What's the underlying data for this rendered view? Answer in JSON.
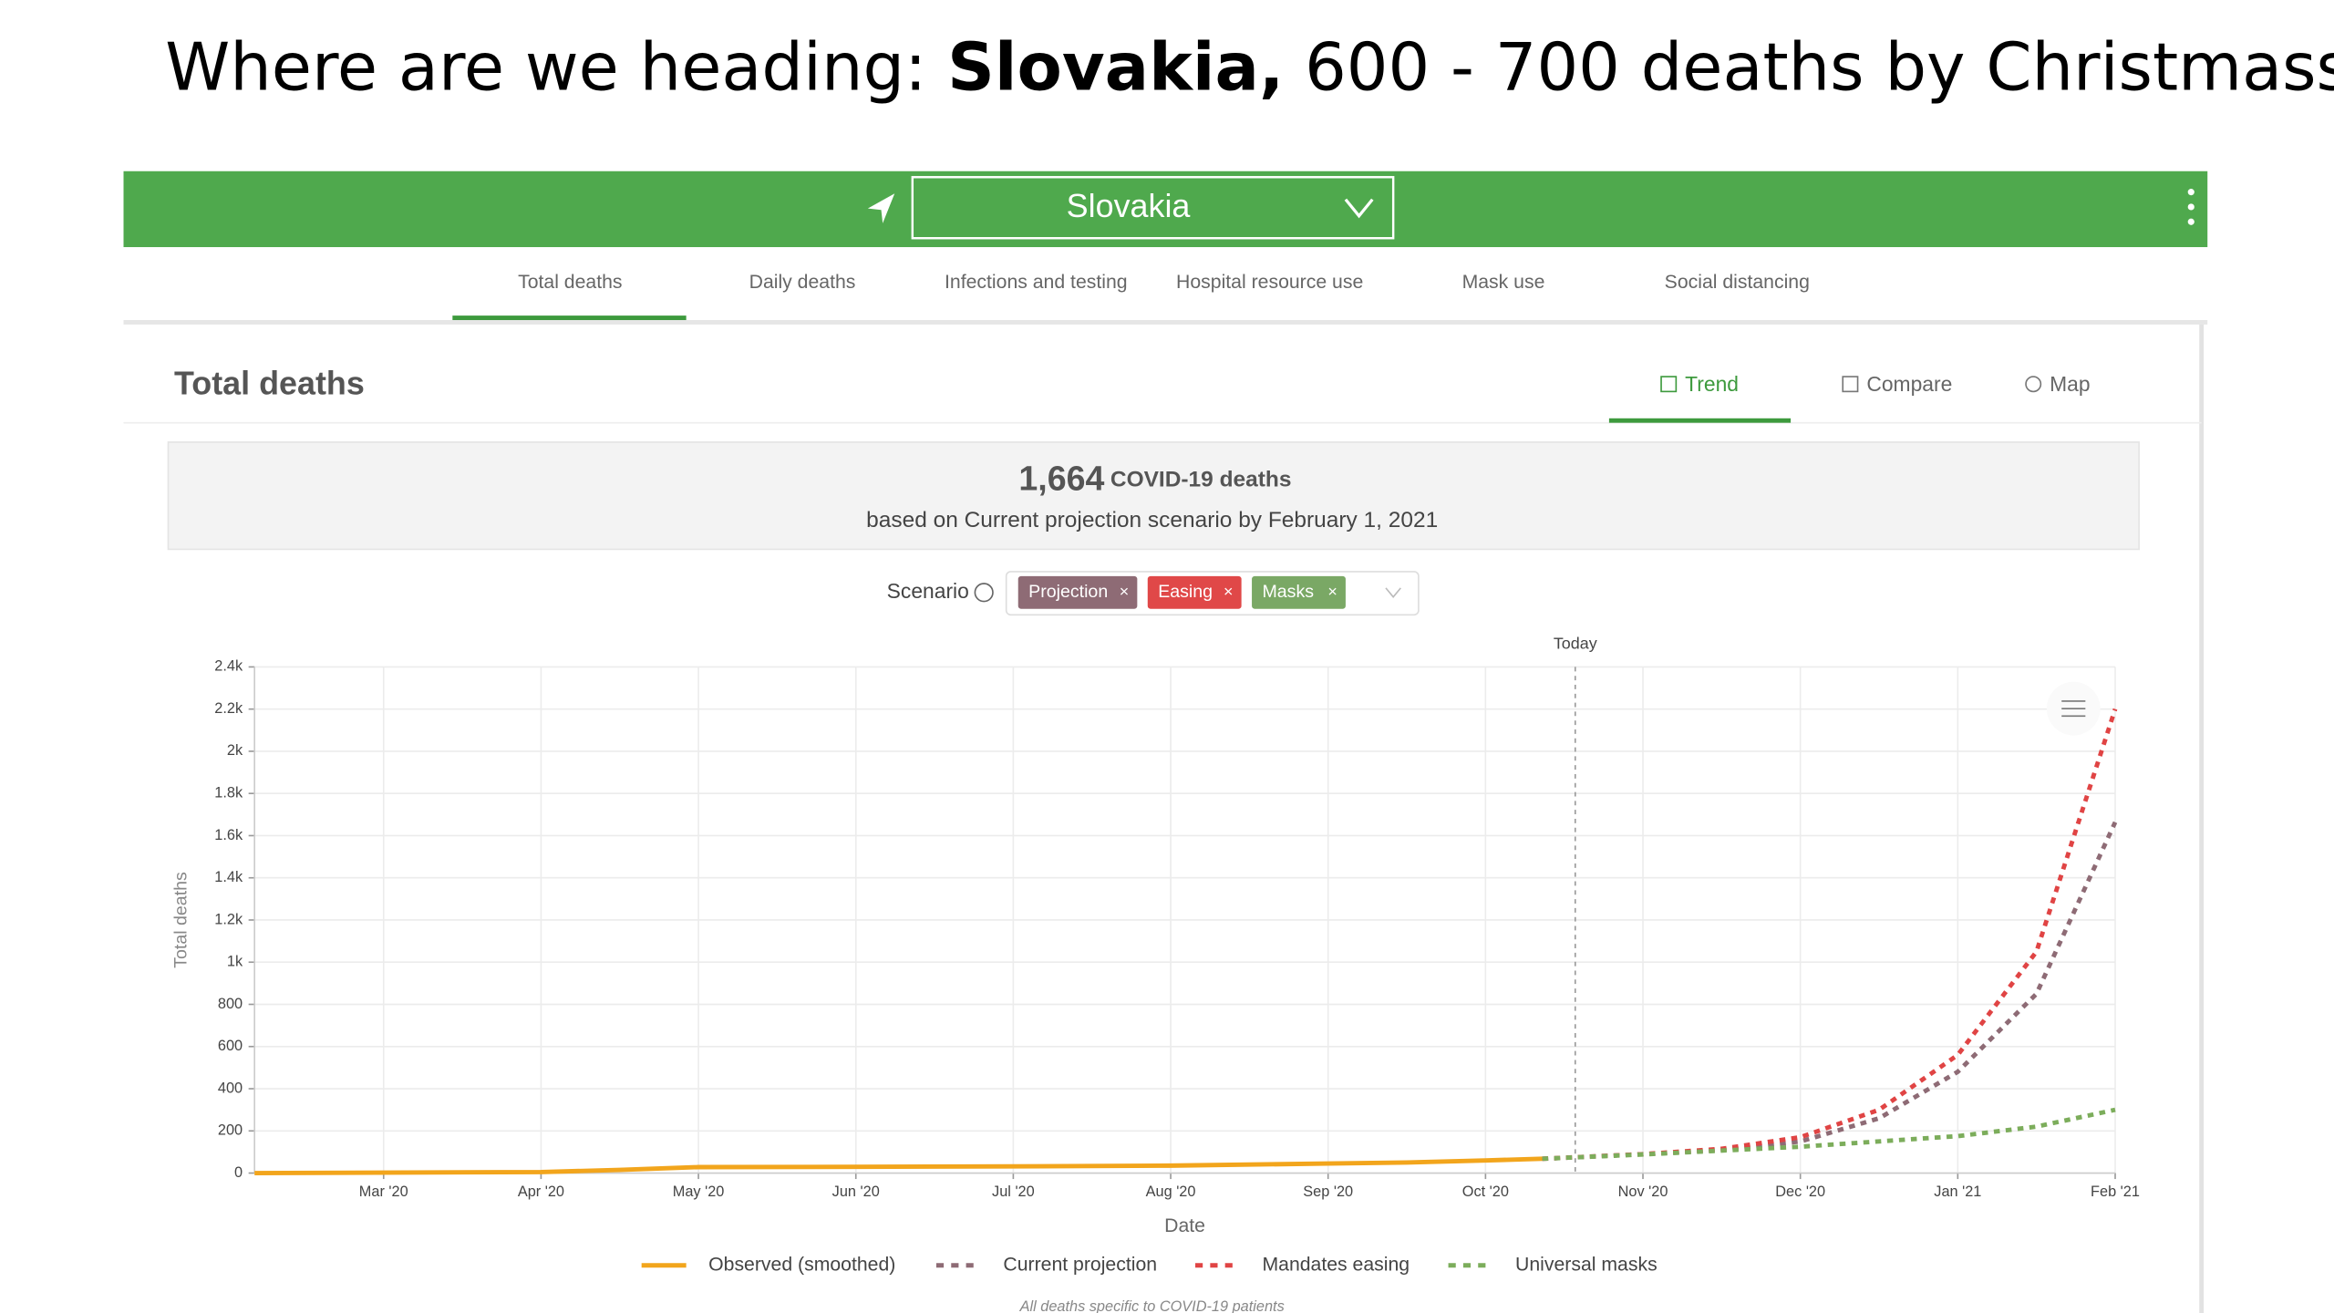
{
  "slide_title": {
    "prefix": "Where are we heading: ",
    "bold": "Slovakia,",
    "suffix": " 600 - 700 deaths by Christmass"
  },
  "header": {
    "location": "Slovakia"
  },
  "tabs": [
    "Total deaths",
    "Daily deaths",
    "Infections and testing",
    "Hospital resource use",
    "Mask use",
    "Social distancing"
  ],
  "section": {
    "title": "Total deaths",
    "views": [
      "Trend",
      "Compare",
      "Map"
    ]
  },
  "summary": {
    "count": "1,664",
    "unit": "COVID-19 deaths",
    "note": "based on Current projection scenario by February 1, 2021"
  },
  "scenario": {
    "label": "Scenario",
    "chips": [
      "Projection",
      "Easing",
      "Masks"
    ]
  },
  "chart_data": {
    "type": "line",
    "xlabel": "Date",
    "ylabel": "Total deaths",
    "xlim": [
      0.18,
      12
    ],
    "ylim": [
      0,
      2400
    ],
    "xticks": [
      {
        "value": 1,
        "label": "Mar '20"
      },
      {
        "value": 2,
        "label": "Apr '20"
      },
      {
        "value": 3,
        "label": "May '20"
      },
      {
        "value": 4,
        "label": "Jun '20"
      },
      {
        "value": 5,
        "label": "Jul '20"
      },
      {
        "value": 6,
        "label": "Aug '20"
      },
      {
        "value": 7,
        "label": "Sep '20"
      },
      {
        "value": 8,
        "label": "Oct '20"
      },
      {
        "value": 9,
        "label": "Nov '20"
      },
      {
        "value": 10,
        "label": "Dec '20"
      },
      {
        "value": 11,
        "label": "Jan '21"
      },
      {
        "value": 12,
        "label": "Feb '21"
      }
    ],
    "yticks": [
      0,
      200,
      400,
      600,
      800,
      {
        "value": 1000,
        "label": "1k"
      },
      {
        "value": 1200,
        "label": "1.2k"
      },
      {
        "value": 1400,
        "label": "1.4k"
      },
      {
        "value": 1600,
        "label": "1.6k"
      },
      {
        "value": 1800,
        "label": "1.8k"
      },
      {
        "value": 2000,
        "label": "2k"
      },
      {
        "value": 2200,
        "label": "2.2k"
      },
      {
        "value": 2400,
        "label": "2.4k"
      }
    ],
    "grid": true,
    "annotations": [
      {
        "text": "Today",
        "x": 8.57
      }
    ],
    "series": [
      {
        "name": "Observed (smoothed)",
        "color": "#f2a51c",
        "line_style": "solid",
        "x": [
          0.18,
          2,
          2.5,
          3,
          4,
          5,
          6,
          7,
          7.5,
          8,
          8.36
        ],
        "values": [
          0,
          5,
          15,
          28,
          30,
          32,
          35,
          45,
          50,
          60,
          68
        ]
      },
      {
        "name": "Current projection",
        "color": "#8e6b75",
        "line_style": "dashed",
        "x": [
          8.36,
          9,
          9.5,
          10,
          10.5,
          11,
          11.5,
          12
        ],
        "values": [
          68,
          90,
          110,
          150,
          260,
          480,
          850,
          1664
        ]
      },
      {
        "name": "Mandates easing",
        "color": "#e04444",
        "line_style": "dashed",
        "x": [
          8.36,
          9,
          9.5,
          10,
          10.5,
          11,
          11.5,
          12
        ],
        "values": [
          68,
          90,
          115,
          170,
          300,
          560,
          1050,
          2200
        ]
      },
      {
        "name": "Universal masks",
        "color": "#7cad5b",
        "line_style": "dashed",
        "x": [
          8.36,
          9,
          10,
          11,
          11.5,
          12
        ],
        "values": [
          68,
          88,
          125,
          175,
          220,
          300
        ]
      }
    ]
  },
  "footnote": "All deaths specific to COVID-19 patients"
}
